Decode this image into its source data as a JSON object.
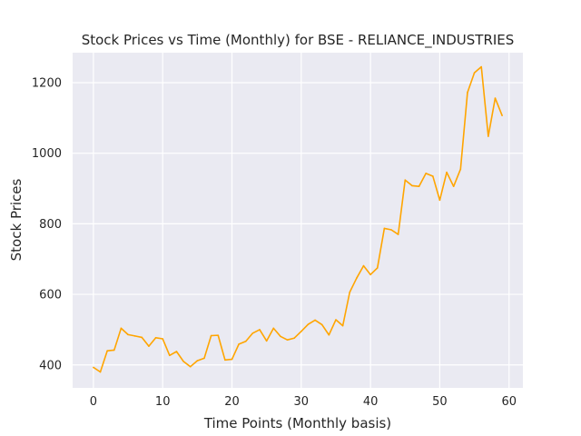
{
  "chart_data": {
    "type": "line",
    "title": "Stock Prices vs Time (Monthly) for BSE - RELIANCE_INDUSTRIES",
    "xlabel": "Time Points (Monthly basis)",
    "ylabel": "Stock Prices",
    "xlim": [
      -3,
      62
    ],
    "ylim": [
      335,
      1285
    ],
    "xticks": [
      0,
      10,
      20,
      30,
      40,
      50,
      60
    ],
    "yticks": [
      400,
      600,
      800,
      1000,
      1200
    ],
    "grid": true,
    "background": "#eaeaf2",
    "grid_color": "#ffffff",
    "line_color": "#ffa500",
    "series": [
      {
        "x": [
          0,
          1,
          2,
          3,
          4,
          5,
          6,
          7,
          8,
          9,
          10,
          11,
          12,
          13,
          14,
          15,
          16,
          17,
          18,
          19,
          20,
          21,
          22,
          23,
          24,
          25,
          26,
          27,
          28,
          29,
          30,
          31,
          32,
          33,
          34,
          35,
          36,
          37,
          38,
          39,
          40,
          41,
          42,
          43,
          44,
          45,
          46,
          47,
          48,
          49,
          50,
          51,
          52,
          53,
          54,
          55,
          56,
          57,
          58,
          59
        ],
        "values": [
          393,
          380,
          440,
          442,
          504,
          486,
          482,
          478,
          453,
          477,
          474,
          427,
          438,
          410,
          395,
          412,
          419,
          483,
          484,
          414,
          416,
          459,
          467,
          490,
          500,
          468,
          504,
          481,
          471,
          476,
          495,
          515,
          527,
          514,
          485,
          528,
          511,
          606,
          646,
          681,
          656,
          675,
          787,
          783,
          770,
          924,
          908,
          906,
          943,
          935,
          867,
          946,
          906,
          955,
          1172,
          1228,
          1245,
          1048,
          1156,
          1107
        ]
      }
    ]
  }
}
